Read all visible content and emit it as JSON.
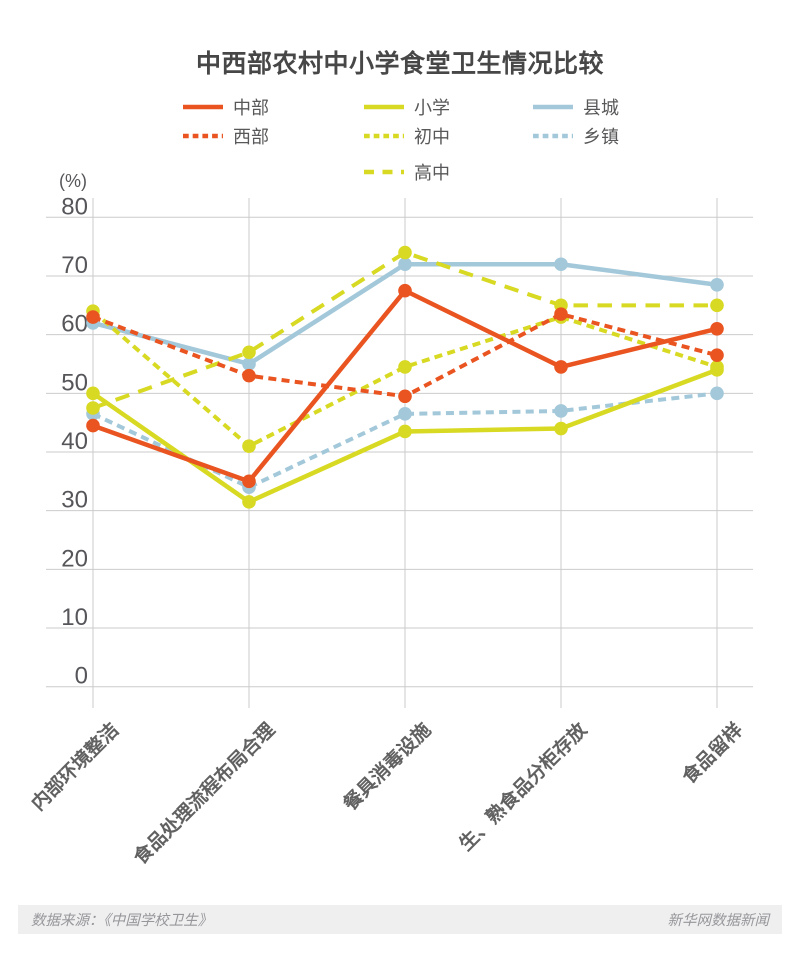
{
  "title": "中西部农村中小学食堂卫生情况比较",
  "y_unit": "(%)",
  "footer": {
    "source": "数据来源：《中国学校卫生》",
    "credit": "新华网数据新闻"
  },
  "colors": {
    "orange": "#e95420",
    "yellow": "#d8d922",
    "blue": "#a2c8da",
    "grid": "#cbcbcb",
    "tick_label": "#56565a",
    "title_text": "#474747",
    "category_label": "#616161",
    "legend_label": "#58585a",
    "footer_bg": "#efeff0",
    "footer_text": "#97979b"
  },
  "legend_columns": [
    [
      "central",
      "western"
    ],
    [
      "primary",
      "junior-high",
      "senior-high"
    ],
    [
      "county-town",
      "township"
    ]
  ],
  "chart_data": {
    "type": "line",
    "title": "中西部农村中小学食堂卫生情况比较",
    "ylabel": "(%)",
    "ylim": [
      0,
      80
    ],
    "yticks": [
      80,
      70,
      60,
      50,
      40,
      30,
      20,
      10,
      0
    ],
    "grid": true,
    "legend_position": "top",
    "categories": [
      "内部环境整洁",
      "食品处理流程布局合理",
      "餐具消毒设施",
      "生、熟食品分柜存放",
      "食品留样"
    ],
    "series": [
      {
        "key": "central",
        "name": "中部",
        "color": "#e95420",
        "style": "solid",
        "values": [
          44.5,
          35,
          67.5,
          54.5,
          61
        ]
      },
      {
        "key": "western",
        "name": "西部",
        "color": "#e95420",
        "style": "dashed-short",
        "values": [
          63,
          53,
          49.5,
          63.5,
          56.5
        ]
      },
      {
        "key": "primary",
        "name": "小学",
        "color": "#d8d922",
        "style": "solid",
        "values": [
          50,
          31.5,
          43.5,
          44,
          54
        ]
      },
      {
        "key": "junior-high",
        "name": "初中",
        "color": "#d8d922",
        "style": "dashed-short",
        "values": [
          64,
          41,
          54.5,
          63,
          54.5
        ]
      },
      {
        "key": "senior-high",
        "name": "高中",
        "color": "#d8d922",
        "style": "dashed-long",
        "values": [
          47.5,
          57,
          74,
          65,
          65
        ]
      },
      {
        "key": "county-town",
        "name": "县城",
        "color": "#a2c8da",
        "style": "solid",
        "values": [
          62,
          55,
          72,
          72,
          68.5
        ]
      },
      {
        "key": "township",
        "name": "乡镇",
        "color": "#a2c8da",
        "style": "dashed-short",
        "values": [
          46.5,
          34,
          46.5,
          47,
          50
        ]
      }
    ]
  }
}
